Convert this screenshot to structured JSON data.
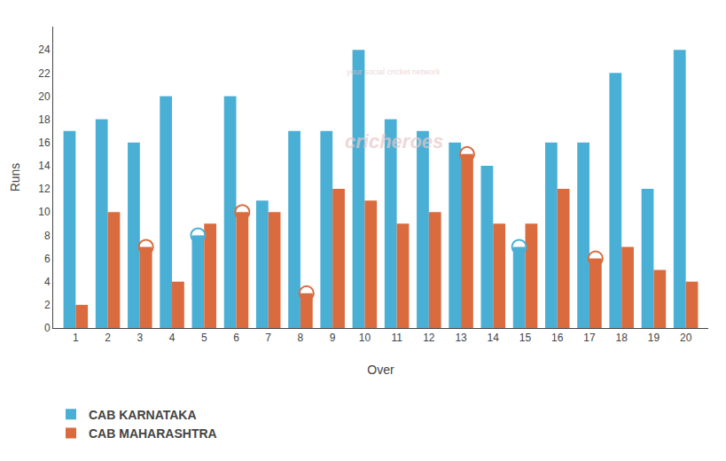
{
  "chart_data": {
    "type": "bar",
    "xlabel": "Over",
    "ylabel": "Runs",
    "categories": [
      1,
      2,
      3,
      4,
      5,
      6,
      7,
      8,
      9,
      10,
      11,
      12,
      13,
      14,
      15,
      16,
      17,
      18,
      19,
      20
    ],
    "series": [
      {
        "name": "CAB KARNATAKA",
        "color": "#4aafd5",
        "values": [
          17,
          18,
          16,
          20,
          8,
          20,
          11,
          17,
          17,
          24,
          18,
          17,
          16,
          14,
          7,
          16,
          16,
          22,
          12,
          24
        ],
        "circled": [
          5,
          15
        ]
      },
      {
        "name": "CAB MAHARASHTRA",
        "color": "#d96b3e",
        "values": [
          2,
          10,
          7,
          4,
          9,
          10,
          10,
          3,
          12,
          11,
          9,
          10,
          15,
          9,
          9,
          12,
          6,
          7,
          5,
          4
        ],
        "circled": [
          3,
          6,
          8,
          13,
          17
        ]
      }
    ],
    "ylim": [
      0,
      26
    ],
    "yticks": [
      0,
      2,
      4,
      6,
      8,
      10,
      12,
      14,
      16,
      18,
      20,
      22,
      24
    ],
    "grid": false,
    "legend": "bottom",
    "annotations": [
      {
        "text": "cricheroes"
      },
      {
        "text": "your social cricket network"
      }
    ]
  }
}
